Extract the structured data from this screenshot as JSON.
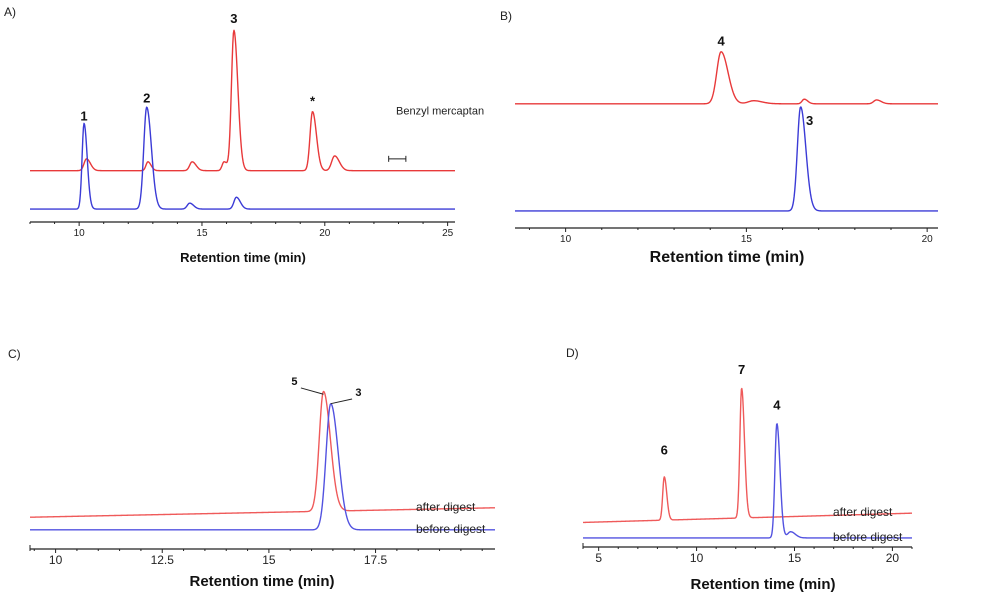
{
  "chart_data": [
    {
      "panel": "A)",
      "type": "line",
      "xlabel": "Retention time (min)",
      "ylabel": "",
      "xlim": [
        8,
        25.3
      ],
      "ticks": [
        10,
        15,
        20,
        25
      ],
      "grid": false,
      "series": [
        {
          "color": "#e8393a",
          "baseline": 0.28,
          "peaks": [
            [
              10.3,
              0.08,
              0.1
            ],
            [
              12.8,
              0.06,
              0.08
            ],
            [
              14.6,
              0.06,
              0.1
            ],
            [
              15.9,
              0.06,
              0.08
            ],
            [
              16.3,
              0.95,
              0.1
            ],
            [
              19.5,
              0.4,
              0.1
            ],
            [
              20.4,
              0.1,
              0.12
            ]
          ]
        },
        {
          "color": "#3b3bd6",
          "baseline": 0.02,
          "peaks": [
            [
              10.2,
              0.58,
              0.08
            ],
            [
              12.75,
              0.69,
              0.12
            ],
            [
              14.5,
              0.04,
              0.1
            ],
            [
              16.4,
              0.08,
              0.1
            ]
          ]
        }
      ],
      "peak_labels": [
        {
          "text": "1",
          "x": 10.2,
          "y": 0.62
        },
        {
          "text": "2",
          "x": 12.75,
          "y": 0.74
        },
        {
          "text": "3",
          "x": 16.3,
          "y": 1.28
        },
        {
          "text": "*",
          "x": 19.5,
          "y": 0.72
        }
      ],
      "annotation": {
        "text": "Benzyl mercaptan",
        "x": 22.9,
        "y": 0.66,
        "bracket": [
          22.6,
          23.3
        ]
      }
    },
    {
      "panel": "B)",
      "type": "line",
      "xlabel": "Retention time (min)",
      "ylabel": "",
      "xlim": [
        8.6,
        20.3
      ],
      "ticks": [
        10,
        15,
        20
      ],
      "grid": false,
      "series": [
        {
          "color": "#e8393a",
          "baseline": 0.72,
          "peaks": [
            [
              14.3,
              0.34,
              0.12
            ],
            [
              15.2,
              0.02,
              0.15
            ],
            [
              16.6,
              0.03,
              0.06
            ],
            [
              18.6,
              0.025,
              0.08
            ]
          ]
        },
        {
          "color": "#3b3bd6",
          "baseline": 0.02,
          "peaks": [
            [
              16.5,
              0.68,
              0.09
            ]
          ]
        }
      ],
      "peak_labels": [
        {
          "text": "4",
          "x": 14.3,
          "y": 1.1
        },
        {
          "text": "3",
          "x": 16.75,
          "y": 0.58
        }
      ]
    },
    {
      "panel": "C)",
      "type": "line",
      "xlabel": "Retention time (min)",
      "ylabel": "",
      "xlim": [
        9.4,
        20.3
      ],
      "ticks": [
        10,
        12.5,
        15,
        17.5
      ],
      "grid": false,
      "series": [
        {
          "name": "after digest",
          "color": "#ef5a5a",
          "baseline": 0.1,
          "peaks": [
            [
              16.28,
              0.76,
              0.1
            ]
          ]
        },
        {
          "name": "before digest",
          "color": "#5252e0",
          "baseline": 0.02,
          "peaks": [
            [
              16.45,
              0.8,
              0.11
            ]
          ]
        }
      ],
      "peak_labels": [
        {
          "text": "5",
          "x": 15.6,
          "y": 0.94
        },
        {
          "text": "3",
          "x": 17.1,
          "y": 0.87
        }
      ]
    },
    {
      "panel": "D)",
      "type": "line",
      "xlabel": "Retention time (min)",
      "ylabel": "",
      "xlim": [
        4.2,
        21.0
      ],
      "ticks": [
        5,
        10,
        15,
        20
      ],
      "grid": false,
      "series": [
        {
          "name": "after digest",
          "color": "#ef5a5a",
          "baseline": 0.12,
          "peaks": [
            [
              8.35,
              0.28,
              0.08
            ],
            [
              12.3,
              0.84,
              0.09
            ]
          ]
        },
        {
          "name": "before digest",
          "color": "#5252e0",
          "baseline": 0.02,
          "peaks": [
            [
              14.1,
              0.74,
              0.1
            ],
            [
              14.8,
              0.04,
              0.15
            ]
          ]
        }
      ],
      "peak_labels": [
        {
          "text": "6",
          "x": 8.35,
          "y": 0.56
        },
        {
          "text": "7",
          "x": 12.3,
          "y": 1.08
        },
        {
          "text": "4",
          "x": 14.1,
          "y": 0.85
        }
      ]
    }
  ]
}
